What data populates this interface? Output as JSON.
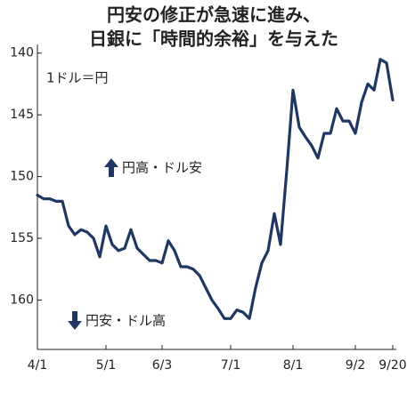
{
  "chart_data": {
    "type": "line",
    "title": [
      "円安の修正が急速に進み、",
      "日銀に「時間的余裕」を与えた"
    ],
    "unit_label": "1ドル＝円",
    "annotations": [
      "円高・ドル安",
      "円安・ドル高"
    ],
    "categories": [
      "4/1",
      null,
      null,
      null,
      null,
      null,
      null,
      null,
      null,
      null,
      null,
      "5/1",
      null,
      null,
      null,
      null,
      null,
      null,
      null,
      null,
      "6/3",
      null,
      null,
      null,
      null,
      null,
      null,
      null,
      null,
      null,
      null,
      "7/1",
      null,
      null,
      null,
      null,
      null,
      null,
      null,
      null,
      null,
      "8/1",
      null,
      null,
      null,
      null,
      null,
      null,
      null,
      null,
      null,
      "9/2",
      null,
      null,
      null,
      null,
      null,
      "9/20"
    ],
    "values": [
      151.5,
      151.8,
      151.8,
      152.0,
      152.0,
      154.0,
      154.7,
      154.3,
      154.5,
      155.0,
      156.5,
      154.0,
      155.5,
      156.0,
      155.8,
      154.3,
      155.8,
      156.3,
      156.8,
      156.8,
      157.0,
      155.2,
      156.0,
      157.3,
      157.3,
      157.5,
      158.0,
      159.0,
      160.0,
      160.7,
      161.5,
      161.5,
      160.8,
      161.0,
      161.5,
      159.0,
      157.0,
      156.0,
      153.0,
      155.5,
      149.5,
      143.0,
      146.0,
      146.8,
      147.5,
      148.5,
      146.5,
      146.5,
      144.5,
      145.5,
      145.5,
      146.5,
      144.0,
      142.5,
      143.0,
      140.5,
      140.8,
      143.8
    ],
    "color": "#1e3764",
    "ylim": [
      164,
      139.3
    ],
    "yticks": [
      140,
      145,
      150,
      155,
      160
    ],
    "grid": false
  }
}
